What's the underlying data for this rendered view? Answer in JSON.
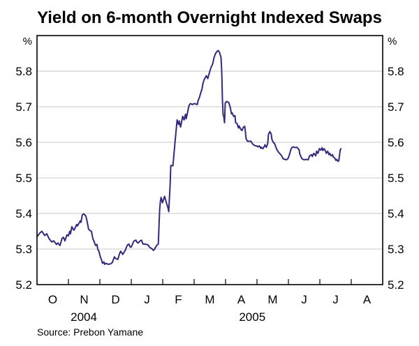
{
  "title": "Yield on 6-month Overnight Indexed Swaps",
  "source": "Source: Prebon Yamane",
  "chart_data": {
    "type": "line",
    "series_name": "6-month overnight indexed swap yield",
    "title": "Yield on 6-month Overnight Indexed Swaps",
    "unit_label": "%",
    "ylim": [
      5.2,
      5.9
    ],
    "y_tick_labels": [
      "5.2",
      "5.3",
      "5.4",
      "5.5",
      "5.6",
      "5.7",
      "5.8"
    ],
    "y_tick_values": [
      5.2,
      5.3,
      5.4,
      5.5,
      5.6,
      5.7,
      5.8
    ],
    "x_month_labels": [
      "O",
      "N",
      "D",
      "J",
      "F",
      "M",
      "A",
      "M",
      "J",
      "J",
      "A"
    ],
    "x_year_labels": [
      {
        "label": "2004",
        "t": 1.49
      },
      {
        "label": "2005",
        "t": 6.85
      }
    ],
    "x_axis_note": "t = months since 1 Oct 2004; axis spans Oct 2004 to Aug 2005",
    "grid_on": true,
    "legend": "none",
    "line_color": "#35287d",
    "grid_color": "#c9c9c9",
    "frame_color": "#000000",
    "points": [
      [
        0.0,
        5.335
      ],
      [
        0.089,
        5.345
      ],
      [
        0.155,
        5.35
      ],
      [
        0.244,
        5.338
      ],
      [
        0.31,
        5.343
      ],
      [
        0.377,
        5.33
      ],
      [
        0.466,
        5.32
      ],
      [
        0.532,
        5.323
      ],
      [
        0.621,
        5.313
      ],
      [
        0.665,
        5.317
      ],
      [
        0.732,
        5.31
      ],
      [
        0.798,
        5.33
      ],
      [
        0.843,
        5.333
      ],
      [
        0.887,
        5.323
      ],
      [
        0.954,
        5.34
      ],
      [
        0.998,
        5.337
      ],
      [
        1.042,
        5.35
      ],
      [
        1.065,
        5.343
      ],
      [
        1.109,
        5.363
      ],
      [
        1.153,
        5.355
      ],
      [
        1.176,
        5.353
      ],
      [
        1.264,
        5.369
      ],
      [
        1.286,
        5.365
      ],
      [
        1.375,
        5.379
      ],
      [
        1.397,
        5.375
      ],
      [
        1.442,
        5.396
      ],
      [
        1.486,
        5.399
      ],
      [
        1.553,
        5.393
      ],
      [
        1.597,
        5.376
      ],
      [
        1.641,
        5.356
      ],
      [
        1.686,
        5.352
      ],
      [
        1.73,
        5.35
      ],
      [
        1.775,
        5.33
      ],
      [
        1.819,
        5.32
      ],
      [
        1.863,
        5.31
      ],
      [
        1.908,
        5.313
      ],
      [
        1.93,
        5.3
      ],
      [
        1.974,
        5.293
      ],
      [
        2.018,
        5.277
      ],
      [
        2.04,
        5.273
      ],
      [
        2.085,
        5.26
      ],
      [
        2.129,
        5.264
      ],
      [
        2.151,
        5.257
      ],
      [
        2.196,
        5.26
      ],
      [
        2.262,
        5.257
      ],
      [
        2.329,
        5.258
      ],
      [
        2.395,
        5.262
      ],
      [
        2.462,
        5.278
      ],
      [
        2.506,
        5.273
      ],
      [
        2.573,
        5.271
      ],
      [
        2.617,
        5.285
      ],
      [
        2.661,
        5.294
      ],
      [
        2.706,
        5.288
      ],
      [
        2.728,
        5.285
      ],
      [
        2.817,
        5.298
      ],
      [
        2.839,
        5.304
      ],
      [
        2.883,
        5.312
      ],
      [
        2.928,
        5.314
      ],
      [
        2.95,
        5.307
      ],
      [
        2.994,
        5.305
      ],
      [
        3.039,
        5.314
      ],
      [
        3.061,
        5.319
      ],
      [
        3.105,
        5.324
      ],
      [
        3.15,
        5.325
      ],
      [
        3.172,
        5.32
      ],
      [
        3.216,
        5.317
      ],
      [
        3.283,
        5.323
      ],
      [
        3.327,
        5.325
      ],
      [
        3.371,
        5.314
      ],
      [
        3.438,
        5.314
      ],
      [
        3.527,
        5.312
      ],
      [
        3.593,
        5.304
      ],
      [
        3.66,
        5.301
      ],
      [
        3.704,
        5.296
      ],
      [
        3.748,
        5.301
      ],
      [
        3.77,
        5.305
      ],
      [
        3.815,
        5.311
      ],
      [
        3.859,
        5.314
      ],
      [
        3.881,
        5.36
      ],
      [
        3.903,
        5.41
      ],
      [
        3.926,
        5.435
      ],
      [
        3.948,
        5.445
      ],
      [
        3.992,
        5.43
      ],
      [
        4.059,
        5.448
      ],
      [
        4.125,
        5.428
      ],
      [
        4.17,
        5.415
      ],
      [
        4.192,
        5.405
      ],
      [
        4.236,
        5.48
      ],
      [
        4.258,
        5.535
      ],
      [
        4.325,
        5.534
      ],
      [
        4.391,
        5.6
      ],
      [
        4.458,
        5.663
      ],
      [
        4.502,
        5.65
      ],
      [
        4.524,
        5.66
      ],
      [
        4.569,
        5.643
      ],
      [
        4.635,
        5.673
      ],
      [
        4.68,
        5.663
      ],
      [
        4.724,
        5.679
      ],
      [
        4.746,
        5.666
      ],
      [
        4.835,
        5.703
      ],
      [
        4.879,
        5.709
      ],
      [
        4.946,
        5.706
      ],
      [
        5.012,
        5.709
      ],
      [
        5.101,
        5.706
      ],
      [
        5.123,
        5.716
      ],
      [
        5.167,
        5.726
      ],
      [
        5.212,
        5.739
      ],
      [
        5.256,
        5.752
      ],
      [
        5.278,
        5.765
      ],
      [
        5.323,
        5.777
      ],
      [
        5.389,
        5.787
      ],
      [
        5.434,
        5.779
      ],
      [
        5.5,
        5.8
      ],
      [
        5.545,
        5.812
      ],
      [
        5.589,
        5.82
      ],
      [
        5.633,
        5.838
      ],
      [
        5.678,
        5.849
      ],
      [
        5.722,
        5.855
      ],
      [
        5.767,
        5.858
      ],
      [
        5.811,
        5.852
      ],
      [
        5.855,
        5.838
      ],
      [
        5.877,
        5.8
      ],
      [
        5.9,
        5.72
      ],
      [
        5.922,
        5.677
      ],
      [
        5.944,
        5.672
      ],
      [
        5.966,
        5.655
      ],
      [
        5.988,
        5.71
      ],
      [
        6.033,
        5.715
      ],
      [
        6.099,
        5.712
      ],
      [
        6.144,
        5.7
      ],
      [
        6.188,
        5.68
      ],
      [
        6.21,
        5.683
      ],
      [
        6.255,
        5.673
      ],
      [
        6.299,
        5.675
      ],
      [
        6.321,
        5.655
      ],
      [
        6.365,
        5.653
      ],
      [
        6.41,
        5.64
      ],
      [
        6.432,
        5.646
      ],
      [
        6.476,
        5.638
      ],
      [
        6.521,
        5.633
      ],
      [
        6.565,
        5.642
      ],
      [
        6.609,
        5.645
      ],
      [
        6.631,
        5.63
      ],
      [
        6.654,
        5.61
      ],
      [
        6.698,
        5.603
      ],
      [
        6.765,
        5.603
      ],
      [
        6.809,
        5.603
      ],
      [
        6.853,
        5.596
      ],
      [
        6.92,
        5.591
      ],
      [
        6.987,
        5.59
      ],
      [
        7.031,
        5.587
      ],
      [
        7.075,
        5.59
      ],
      [
        7.12,
        5.583
      ],
      [
        7.142,
        5.586
      ],
      [
        7.186,
        5.582
      ],
      [
        7.231,
        5.588
      ],
      [
        7.253,
        5.593
      ],
      [
        7.297,
        5.586
      ],
      [
        7.341,
        5.596
      ],
      [
        7.364,
        5.622
      ],
      [
        7.408,
        5.63
      ],
      [
        7.452,
        5.624
      ],
      [
        7.475,
        5.608
      ],
      [
        7.519,
        5.6
      ],
      [
        7.563,
        5.596
      ],
      [
        7.63,
        5.58
      ],
      [
        7.696,
        5.571
      ],
      [
        7.741,
        5.567
      ],
      [
        7.785,
        5.562
      ],
      [
        7.829,
        5.554
      ],
      [
        7.896,
        5.552
      ],
      [
        7.94,
        5.551
      ],
      [
        7.985,
        5.554
      ],
      [
        8.029,
        5.564
      ],
      [
        8.073,
        5.579
      ],
      [
        8.118,
        5.586
      ],
      [
        8.162,
        5.587
      ],
      [
        8.229,
        5.585
      ],
      [
        8.273,
        5.586
      ],
      [
        8.34,
        5.579
      ],
      [
        8.362,
        5.567
      ],
      [
        8.428,
        5.554
      ],
      [
        8.495,
        5.551
      ],
      [
        8.562,
        5.552
      ],
      [
        8.628,
        5.551
      ],
      [
        8.673,
        5.562
      ],
      [
        8.739,
        5.565
      ],
      [
        8.761,
        5.56
      ],
      [
        8.806,
        5.569
      ],
      [
        8.872,
        5.562
      ],
      [
        8.894,
        5.575
      ],
      [
        8.939,
        5.569
      ],
      [
        8.983,
        5.582
      ],
      [
        9.027,
        5.578
      ],
      [
        9.072,
        5.585
      ],
      [
        9.094,
        5.577
      ],
      [
        9.138,
        5.582
      ],
      [
        9.183,
        5.575
      ],
      [
        9.205,
        5.569
      ],
      [
        9.249,
        5.575
      ],
      [
        9.294,
        5.565
      ],
      [
        9.316,
        5.569
      ],
      [
        9.36,
        5.562
      ],
      [
        9.405,
        5.565
      ],
      [
        9.427,
        5.559
      ],
      [
        9.471,
        5.556
      ],
      [
        9.516,
        5.549
      ],
      [
        9.538,
        5.552
      ],
      [
        9.582,
        5.546
      ],
      [
        9.605,
        5.549
      ],
      [
        9.649,
        5.579
      ],
      [
        9.671,
        5.582
      ]
    ]
  }
}
